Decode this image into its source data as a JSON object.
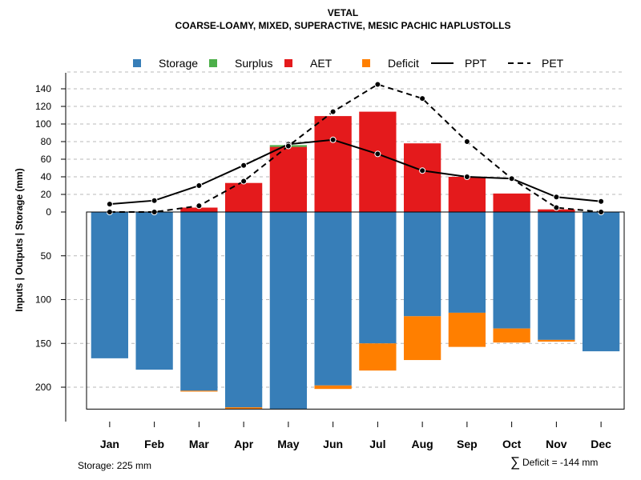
{
  "chart_data": {
    "type": "bar",
    "title": "VETAL",
    "subtitle": "COARSE-LOAMY, MIXED, SUPERACTIVE, MESIC PACHIC HAPLUSTOLLS",
    "ylabel": "Inputs | Outputs | Storage    (mm)",
    "categories": [
      "Jan",
      "Feb",
      "Mar",
      "Apr",
      "May",
      "Jun",
      "Jul",
      "Aug",
      "Sep",
      "Oct",
      "Nov",
      "Dec"
    ],
    "upper_axis": {
      "range": [
        0,
        150
      ],
      "ticks": [
        "0",
        "20",
        "40",
        "60",
        "80",
        "100",
        "120",
        "140"
      ],
      "tick_values": [
        0,
        20,
        40,
        60,
        80,
        100,
        120,
        140
      ]
    },
    "lower_axis": {
      "range": [
        0,
        225
      ],
      "ticks": [
        "50",
        "100",
        "150",
        "200"
      ],
      "tick_values": [
        50,
        100,
        150,
        200
      ]
    },
    "legend": [
      {
        "key": "storage",
        "label": "Storage",
        "color": "#377EB8",
        "kind": "box"
      },
      {
        "key": "surplus",
        "label": "Surplus",
        "color": "#4DAF4A",
        "kind": "box"
      },
      {
        "key": "aet",
        "label": "AET",
        "color": "#E41A1C",
        "kind": "box"
      },
      {
        "key": "deficit",
        "label": "Deficit",
        "color": "#FF7F00",
        "kind": "box"
      },
      {
        "key": "ppt",
        "label": "PPT",
        "color": "#000000",
        "kind": "solid"
      },
      {
        "key": "pet",
        "label": "PET",
        "color": "#000000",
        "kind": "dashed"
      }
    ],
    "series": [
      {
        "name": "AET",
        "color": "#E41A1C",
        "values": [
          0,
          0,
          5,
          33,
          74,
          109,
          114,
          78,
          40,
          21,
          3,
          0
        ]
      },
      {
        "name": "Surplus",
        "color": "#4DAF4A",
        "values": [
          0,
          0,
          0,
          0,
          2,
          0,
          0,
          0,
          0,
          0,
          0,
          0
        ]
      },
      {
        "name": "Storage",
        "color": "#377EB8",
        "values": [
          167,
          180,
          204,
          223,
          225,
          198,
          150,
          119,
          115,
          133,
          146,
          159
        ]
      },
      {
        "name": "Deficit",
        "color": "#FF7F00",
        "values": [
          0,
          0,
          1,
          2,
          0,
          4,
          31,
          50,
          39,
          16,
          2,
          0
        ]
      },
      {
        "name": "PPT",
        "color": "#000000",
        "values": [
          9,
          13,
          30,
          53,
          77,
          82,
          66,
          47,
          40,
          38,
          17,
          12
        ]
      },
      {
        "name": "PET",
        "color": "#000000",
        "values": [
          0,
          0,
          7,
          35,
          75,
          114,
          145,
          129,
          80,
          38,
          5,
          0
        ]
      }
    ]
  },
  "footer": {
    "storage_note": "Storage: 225 mm",
    "deficit_symbol": "∑",
    "deficit_note": "Deficit = -144 mm"
  }
}
